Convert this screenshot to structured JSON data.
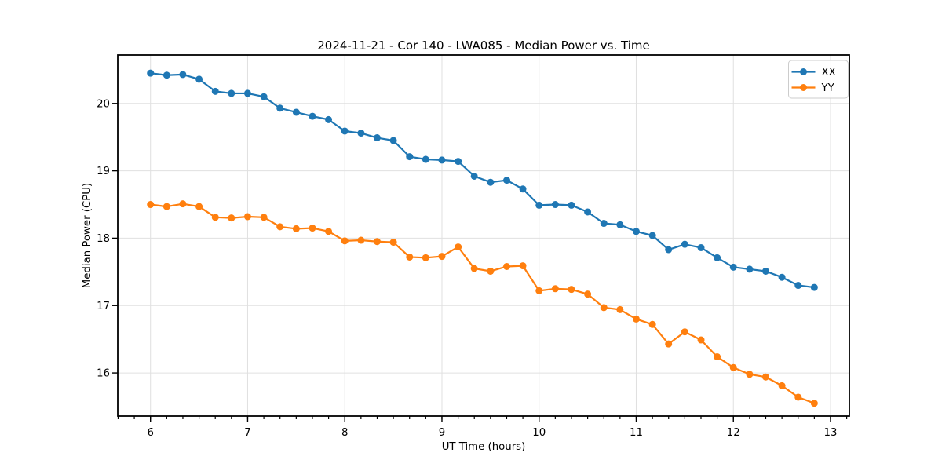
{
  "figure": {
    "background": "#ffffff",
    "plot_border_color": "#000000",
    "grid_color": "#e0e0e0",
    "tick_color": "#000000",
    "legend_border_color": "#cccccc"
  },
  "chart_data": {
    "type": "line",
    "title": "2024-11-21 - Cor 140 - LWA085 - Median Power vs. Time",
    "xlabel": "UT Time (hours)",
    "ylabel": "Median Power (CPU)",
    "xlim": [
      5.663,
      13.194
    ],
    "ylim": [
      15.36,
      20.72
    ],
    "x_major_ticks": [
      6,
      7,
      8,
      9,
      10,
      11,
      12,
      13
    ],
    "x_minor_step": 0.166667,
    "y_major_ticks": [
      16,
      17,
      18,
      19,
      20
    ],
    "grid": true,
    "legend_position": "upper right",
    "x": [
      6.0,
      6.167,
      6.333,
      6.5,
      6.667,
      6.833,
      7.0,
      7.167,
      7.333,
      7.5,
      7.667,
      7.833,
      8.0,
      8.167,
      8.333,
      8.5,
      8.667,
      8.833,
      9.0,
      9.167,
      9.333,
      9.5,
      9.667,
      9.833,
      10.0,
      10.167,
      10.333,
      10.5,
      10.667,
      10.833,
      11.0,
      11.167,
      11.333,
      11.5,
      11.667,
      11.833,
      12.0,
      12.167,
      12.333,
      12.5,
      12.667,
      12.833
    ],
    "series": [
      {
        "name": "XX",
        "color": "#1f77b4",
        "values": [
          20.45,
          20.42,
          20.43,
          20.36,
          20.18,
          20.15,
          20.15,
          20.1,
          19.93,
          19.87,
          19.81,
          19.76,
          19.59,
          19.56,
          19.49,
          19.45,
          19.21,
          19.17,
          19.16,
          19.14,
          18.92,
          18.83,
          18.86,
          18.73,
          18.49,
          18.5,
          18.49,
          18.39,
          18.22,
          18.2,
          18.1,
          18.04,
          17.83,
          17.91,
          17.86,
          17.71,
          17.57,
          17.54,
          17.51,
          17.42,
          17.3,
          17.27
        ]
      },
      {
        "name": "YY",
        "color": "#ff7f0e",
        "values": [
          18.5,
          18.47,
          18.51,
          18.47,
          18.31,
          18.3,
          18.32,
          18.31,
          18.17,
          18.14,
          18.15,
          18.1,
          17.96,
          17.97,
          17.95,
          17.94,
          17.72,
          17.71,
          17.73,
          17.87,
          17.55,
          17.51,
          17.58,
          17.59,
          17.22,
          17.25,
          17.24,
          17.17,
          16.97,
          16.94,
          16.8,
          16.72,
          16.43,
          16.61,
          16.49,
          16.24,
          16.08,
          15.98,
          15.94,
          15.81,
          15.64,
          15.55
        ]
      }
    ]
  }
}
